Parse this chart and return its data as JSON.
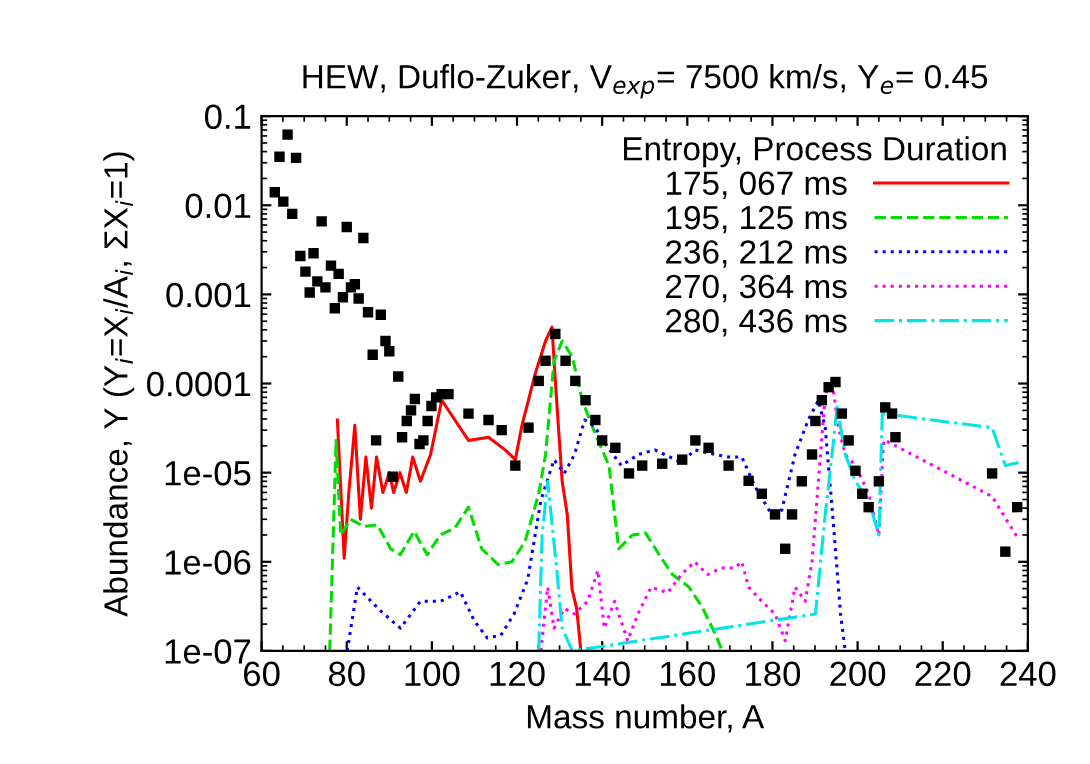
{
  "chart_data": {
    "type": "line",
    "title": "HEW, Duflo-Zuker, V$_{exp}$= 7500 km/s, Y$_{e}$= 0.45",
    "xlabel": "Mass number, A",
    "ylabel": "Abundance, Y (Y$_{i}$=X$_{i}$/A$_{i}$, ΣX$_{i}$=1)",
    "legend_title": "Entropy, Process Duration",
    "legend": "top right",
    "log": "y",
    "grid": false,
    "xlim": [
      60,
      240
    ],
    "xticks": [
      60,
      80,
      100,
      120,
      140,
      160,
      180,
      200,
      220,
      240
    ],
    "ylim": [
      1e-07,
      0.1
    ],
    "yticks": [
      {
        "value": 1e-07,
        "label": "1e-07"
      },
      {
        "value": 1e-06,
        "label": "1e-06"
      },
      {
        "value": 1e-05,
        "label": "1e-05"
      },
      0.0001,
      0.001,
      0.01,
      0.1
    ],
    "series": [
      {
        "type": "scatter",
        "color": "#000000",
        "marker": "square",
        "x": [
          63.1,
          64.2,
          65.1,
          66.1,
          67.2,
          68.1,
          69.1,
          70.3,
          71.3,
          72.2,
          73.1,
          74.1,
          75.0,
          76.3,
          77.2,
          78.1,
          79.1,
          80.0,
          81.0,
          81.9,
          82.8,
          83.9,
          85.0,
          86.1,
          86.9,
          88.0,
          89.1,
          90.0,
          90.8,
          92.1,
          93.0,
          94.1,
          95.1,
          96.0,
          97.1,
          98.0,
          99.0,
          99.9,
          101,
          102.3,
          103.9,
          108.6,
          113.3,
          116.4,
          119.6,
          122.7,
          125.1,
          126.7,
          129,
          131.4,
          133.7,
          136.1,
          138.4,
          140,
          143.1,
          146.3,
          149.4,
          154.1,
          158.8,
          161.9,
          165,
          169.7,
          174.4,
          177.5,
          180.6,
          183,
          184.6,
          186.9,
          189.3,
          190.1,
          191.6,
          193.2,
          194.8,
          196.3,
          197.9,
          199.5,
          201.1,
          202.6,
          205,
          206.5,
          208.1,
          208.9,
          231.6,
          234.7,
          237.5
        ],
        "values": [
          0.014,
          0.035,
          0.011,
          0.062,
          0.008,
          0.034,
          0.0027,
          0.0018,
          0.00105,
          0.0029,
          0.0014,
          0.0066,
          0.0012,
          0.0021,
          0.0007,
          0.0017,
          0.00093,
          0.0057,
          0.0012,
          0.0013,
          0.0009,
          0.0043,
          0.00063,
          0.00021,
          2.3e-05,
          0.00059,
          0.0003,
          0.00023,
          9e-06,
          0.00012,
          2.5e-05,
          3.8e-05,
          5e-05,
          6.7e-05,
          2.1e-05,
          2.3e-05,
          3.8e-05,
          5.6e-05,
          7e-05,
          7.6e-05,
          7.6e-05,
          4.6e-05,
          3.9e-05,
          3e-05,
          1.2e-05,
          3.2e-05,
          0.000107,
          0.00018,
          0.00036,
          0.00018,
          0.000107,
          6.5e-05,
          3.9e-05,
          2.3e-05,
          1.9e-05,
          9.8e-06,
          1.2e-05,
          1.26e-05,
          1.4e-05,
          2.3e-05,
          1.9e-05,
          1.2e-05,
          8.1e-06,
          5.8e-06,
          3.4e-06,
          1.4e-06,
          3.4e-06,
          8e-06,
          1.6e-05,
          3.8e-05,
          6.5e-05,
          9.1e-05,
          0.000104,
          4.6e-05,
          2.3e-05,
          1.05e-05,
          5.8e-06,
          4.1e-06,
          8e-06,
          5.4e-05,
          4.6e-05,
          2.5e-05,
          9.8e-06,
          1.3e-06,
          4.1e-06
        ]
      },
      {
        "name": "175, 067 ms",
        "color": "#ff0000",
        "line_style": "solid",
        "x": [
          77.8,
          79.4,
          80.5,
          81.9,
          83.2,
          84.5,
          85.8,
          87,
          88.5,
          90,
          91,
          92.5,
          94,
          95.5,
          97.3,
          99.7,
          102.3,
          105.4,
          108.6,
          113.3,
          117.2,
          119.6,
          121.1,
          124.3,
          126.7,
          128.2,
          129.3,
          130.6,
          131.8,
          132.9,
          134,
          135
        ],
        "values": [
          3.9e-05,
          1.1e-06,
          6e-06,
          3.4e-05,
          3e-06,
          1.5e-05,
          4e-06,
          1.5e-05,
          6e-06,
          1e-05,
          6e-06,
          1e-05,
          6e-06,
          1.5e-05,
          8e-06,
          1.6e-05,
          6.5e-05,
          3.9e-05,
          2.3e-05,
          2.5e-05,
          1.8e-05,
          1.4e-05,
          3.3e-05,
          0.00013,
          0.0003,
          0.00043,
          6.5e-05,
          8e-06,
          3.4e-06,
          5e-07,
          3e-07,
          1e-07
        ]
      },
      {
        "name": "195, 125 ms",
        "color": "#00dd00",
        "line_style": "dashed",
        "x": [
          76,
          77.5,
          78.6,
          80.9,
          84,
          87.2,
          90.3,
          92.6,
          95.8,
          98.9,
          102,
          105.4,
          108.6,
          111.7,
          115.6,
          118.8,
          121.9,
          125.1,
          126.7,
          128.7,
          130.6,
          133,
          135.3,
          138.4,
          141.6,
          143.9,
          147.1,
          150.2,
          153.4,
          156.5,
          160.4,
          163.5,
          166.7,
          168.2
        ],
        "values": [
          1e-07,
          2.3e-05,
          2e-06,
          3e-06,
          2.5e-06,
          2.6e-06,
          1.4e-06,
          1.2e-06,
          2.2e-06,
          1.2e-06,
          2e-06,
          2.4e-06,
          4.1e-06,
          1.4e-06,
          9.3e-07,
          1e-06,
          1.7e-06,
          5.8e-06,
          1.6e-05,
          0.00018,
          0.0003,
          0.0002,
          6.5e-05,
          2.7e-05,
          1.2e-05,
          1.4e-06,
          2e-06,
          2.1e-06,
          1.2e-06,
          7.2e-07,
          5.2e-07,
          3.1e-07,
          1.5e-07,
          1e-07
        ]
      },
      {
        "name": "236, 212 ms",
        "color": "#0000ff",
        "line_style": "dotted",
        "x": [
          80.1,
          82.5,
          84.8,
          88,
          92.6,
          97.3,
          102,
          106.7,
          109.9,
          113,
          116.2,
          119.3,
          122.5,
          125.6,
          128.7,
          131.1,
          133.5,
          135.9,
          138.2,
          141.4,
          144.5,
          148.5,
          152.4,
          158.6,
          161.8,
          166.5,
          169.6,
          172.8,
          175.9,
          179.8,
          182.2,
          185.3,
          188.4,
          190.8,
          192.4,
          194,
          196,
          197.1
        ],
        "values": [
          1e-07,
          5.2e-07,
          4e-07,
          2.8e-07,
          1.8e-07,
          3.6e-07,
          3.6e-07,
          4.6e-07,
          2.2e-07,
          1.4e-07,
          1.5e-07,
          2.6e-07,
          6.3e-07,
          4.9e-06,
          1.4e-05,
          9.8e-06,
          1.6e-05,
          3.9e-05,
          3.3e-05,
          1.9e-05,
          1.2e-05,
          1.6e-05,
          1.8e-05,
          1.3e-05,
          1.8e-05,
          1.6e-05,
          1.5e-05,
          1.5e-05,
          7e-06,
          3.4e-06,
          3.8e-06,
          1.6e-05,
          3.9e-05,
          6.5e-05,
          3.2e-05,
          4.1e-06,
          2.6e-07,
          1e-07
        ]
      },
      {
        "name": "270, 364 ms",
        "color": "#ff00ff",
        "line_style": "dotted",
        "x": [
          125.6,
          127.2,
          128.7,
          131.1,
          133.5,
          136.6,
          139,
          140.5,
          142.9,
          146,
          148.4,
          151.5,
          155.4,
          158.6,
          161.7,
          164.8,
          168,
          171.1,
          172.8,
          174.4,
          177.5,
          180.6,
          183,
          185.3,
          187.7,
          189.3,
          190.8,
          192.4,
          194,
          195.5,
          197.1,
          199.5,
          202.6,
          205,
          206.1,
          207.3,
          231.6,
          237.8
        ],
        "values": [
          1e-07,
          5.2e-07,
          1.8e-07,
          3e-07,
          2.6e-07,
          3.6e-07,
          8e-07,
          1.8e-07,
          3.6e-07,
          1.3e-07,
          2.6e-07,
          5.2e-07,
          4.5e-07,
          7.2e-07,
          1e-06,
          7.2e-07,
          8.5e-07,
          8.5e-07,
          1e-06,
          5.2e-07,
          3.6e-07,
          2.6e-07,
          1.3e-07,
          5.2e-07,
          3.6e-07,
          1e-06,
          8e-06,
          7.6e-05,
          0.000107,
          3.2e-05,
          1.6e-05,
          1.2e-05,
          5.8e-06,
          2e-06,
          2.3e-05,
          2.2e-05,
          5.4e-06,
          1.8e-06
        ]
      },
      {
        "name": "280, 436 ms",
        "color": "#00e5e5",
        "line_style": "dashdot",
        "x": [
          125.1,
          125.9,
          127.2,
          129.3,
          130.6,
          133,
          190.1,
          192.4,
          194,
          195.2,
          197.1,
          199.5,
          202.6,
          205,
          205.8,
          231.6,
          234.7,
          237.8
        ],
        "values": [
          1e-07,
          2e-06,
          8e-06,
          8.5e-07,
          1.8e-07,
          1e-07,
          2.6e-07,
          3.4e-06,
          1.6e-05,
          5.4e-05,
          1.6e-05,
          8e-06,
          4.9e-06,
          2e-06,
          4.6e-05,
          3.2e-05,
          1.2e-05,
          1.3e-05
        ]
      }
    ]
  }
}
